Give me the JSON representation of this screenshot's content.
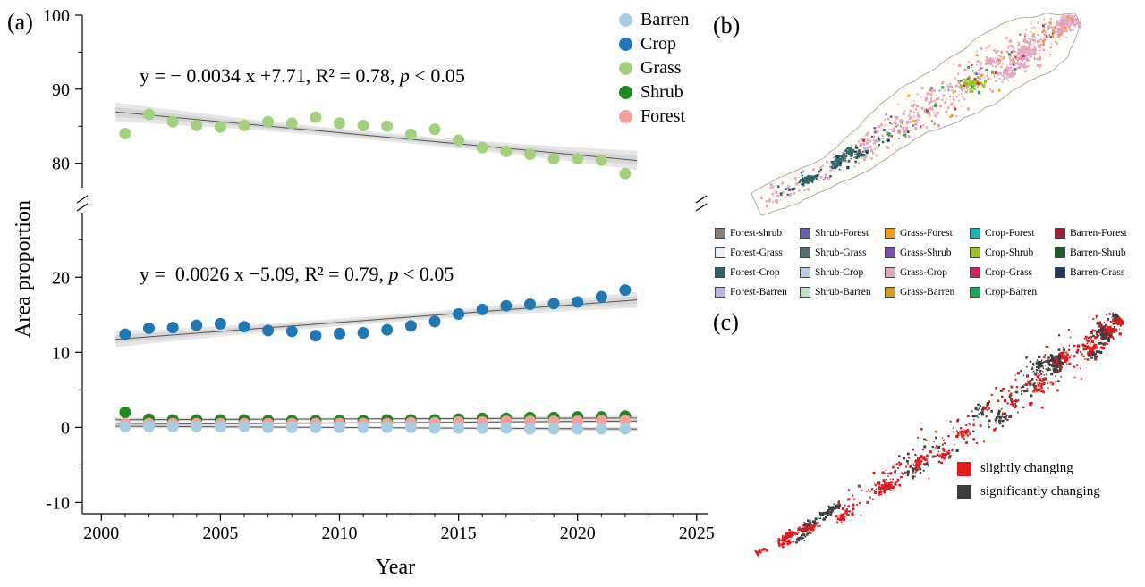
{
  "labels": {
    "a": "(a)",
    "b": "(b)",
    "c": "(c)"
  },
  "chart_data": {
    "type": "scatter",
    "title": "",
    "xlabel": "Year",
    "ylabel": "Area proportion",
    "x_range": [
      1999.2,
      2025.5
    ],
    "x_ticks": [
      2000,
      2005,
      2010,
      2015,
      2020,
      2025
    ],
    "y_axis_break": {
      "top_range": [
        76.7,
        100
      ],
      "bottom_range": [
        -11.5,
        28.6
      ],
      "top_ticks": [
        80,
        90,
        100
      ],
      "top_minor_ticks": [
        85,
        95
      ],
      "bottom_ticks": [
        -10,
        0,
        10,
        20
      ],
      "bottom_minor_ticks": [
        -5,
        5,
        15,
        25
      ]
    },
    "grid": false,
    "legend_position": "top-right",
    "years": [
      2001,
      2002,
      2003,
      2004,
      2005,
      2006,
      2007,
      2008,
      2009,
      2010,
      2011,
      2012,
      2013,
      2014,
      2015,
      2016,
      2017,
      2018,
      2019,
      2020,
      2021,
      2022
    ],
    "series": [
      {
        "name": "Barren",
        "color": "#a6cee3",
        "values": [
          0.1,
          0.1,
          0.1,
          0.1,
          0.1,
          0.1,
          0.0,
          0.0,
          0.0,
          0.0,
          0.0,
          0.0,
          0.0,
          -0.1,
          -0.1,
          -0.1,
          -0.1,
          -0.2,
          -0.2,
          -0.2,
          -0.2,
          -0.2
        ]
      },
      {
        "name": "Crop",
        "color": "#1f78b4",
        "values": [
          12.4,
          13.2,
          13.3,
          13.6,
          13.8,
          13.4,
          12.9,
          12.8,
          12.2,
          12.5,
          12.6,
          13.0,
          13.5,
          14.1,
          15.1,
          15.7,
          16.2,
          16.4,
          16.5,
          16.7,
          17.4,
          18.3
        ]
      },
      {
        "name": "Grass",
        "color": "#a2d17c",
        "values": [
          84.0,
          86.6,
          85.6,
          85.1,
          84.9,
          85.1,
          85.6,
          85.4,
          86.2,
          85.4,
          85.1,
          85.0,
          83.9,
          84.6,
          83.1,
          82.1,
          81.6,
          81.2,
          80.6,
          80.6,
          80.4,
          78.6
        ]
      },
      {
        "name": "Shrub",
        "color": "#1e8a1e",
        "values": [
          2.0,
          1.1,
          1.0,
          1.0,
          1.0,
          1.0,
          0.9,
          0.9,
          0.9,
          0.9,
          0.9,
          1.0,
          1.0,
          1.0,
          1.1,
          1.2,
          1.2,
          1.3,
          1.3,
          1.4,
          1.4,
          1.5
        ]
      },
      {
        "name": "Forest",
        "color": "#f5a09d",
        "values": [
          0.5,
          0.5,
          0.5,
          0.5,
          0.5,
          0.5,
          0.5,
          0.5,
          0.5,
          0.5,
          0.5,
          0.5,
          0.6,
          0.6,
          0.7,
          0.7,
          0.8,
          0.8,
          0.8,
          0.8,
          0.9,
          0.9
        ]
      }
    ],
    "equations": [
      {
        "series": "Grass",
        "main": "y = − 0.0034 x +7.71, R² = 0.78, ",
        "p": "p",
        "tail": " < 0.05"
      },
      {
        "series": "Crop",
        "main": "y =  0.0026 x −5.09, R² = 0.79, ",
        "p": "p",
        "tail": " < 0.05"
      }
    ]
  },
  "panel_b": {
    "legend": [
      {
        "label": "Forest-shrub",
        "color": "#8a8078"
      },
      {
        "label": "Shrub-Forest",
        "color": "#6661ad"
      },
      {
        "label": "Grass-Forest",
        "color": "#f59b22"
      },
      {
        "label": "Crop-Forest",
        "color": "#19b5b5"
      },
      {
        "label": "Barren-Forest",
        "color": "#a31f34"
      },
      {
        "label": "Forest-Grass",
        "color": "#eaf4f6"
      },
      {
        "label": "Shrub-Grass",
        "color": "#566f72"
      },
      {
        "label": "Grass-Shrub",
        "color": "#7d4fa6"
      },
      {
        "label": "Crop-Shrub",
        "color": "#9ac325"
      },
      {
        "label": "Barren-Shrub",
        "color": "#1d5c1f"
      },
      {
        "label": "Forest-Crop",
        "color": "#2e6668"
      },
      {
        "label": "Shrub-Crop",
        "color": "#b9cfe8"
      },
      {
        "label": "Grass-Crop",
        "color": "#e3a7c4"
      },
      {
        "label": "Crop-Grass",
        "color": "#cf2356"
      },
      {
        "label": "Barren-Grass",
        "color": "#1d3a5f"
      },
      {
        "label": "Forest-Barren",
        "color": "#b9b3dd"
      },
      {
        "label": "Shrub-Barren",
        "color": "#bfe3c0"
      },
      {
        "label": "Grass-Barren",
        "color": "#c9a227"
      },
      {
        "label": "Crop-Barren",
        "color": "#1ba75d"
      }
    ]
  },
  "panel_c": {
    "legend": [
      {
        "label": "slightly changing",
        "color": "#e31a1c"
      },
      {
        "label": "significantly changing",
        "color": "#3d3d3d"
      }
    ]
  }
}
